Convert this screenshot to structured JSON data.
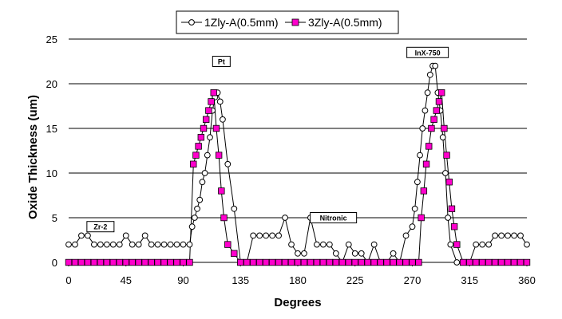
{
  "chart_data": {
    "type": "line",
    "xlabel": "Degrees",
    "ylabel": "Oxide Thickness (um)",
    "xlim": [
      0,
      360
    ],
    "ylim": [
      0,
      25
    ],
    "xticks": [
      0,
      45,
      90,
      135,
      180,
      225,
      270,
      315,
      360
    ],
    "yticks": [
      0,
      5,
      10,
      15,
      20,
      25
    ],
    "grid": "horizontal",
    "legend_position": "top",
    "series": [
      {
        "name": "1Zly-A(0.5mm)",
        "color": "#000000",
        "marker": "circle-open",
        "x": [
          0,
          5,
          10,
          15,
          20,
          25,
          30,
          35,
          40,
          45,
          50,
          55,
          60,
          65,
          70,
          75,
          80,
          85,
          90,
          95,
          97,
          99,
          101,
          103,
          105,
          107,
          109,
          111,
          113,
          115,
          117,
          119,
          121,
          125,
          130,
          135,
          140,
          145,
          150,
          155,
          160,
          165,
          170,
          175,
          180,
          185,
          190,
          195,
          200,
          205,
          210,
          215,
          220,
          225,
          230,
          235,
          240,
          245,
          250,
          255,
          260,
          265,
          270,
          272,
          274,
          276,
          278,
          280,
          282,
          284,
          286,
          288,
          290,
          292,
          294,
          296,
          298,
          300,
          305,
          310,
          315,
          320,
          325,
          330,
          335,
          340,
          345,
          350,
          355,
          360
        ],
        "y": [
          2,
          2,
          3,
          3,
          2,
          2,
          2,
          2,
          2,
          3,
          2,
          2,
          3,
          2,
          2,
          2,
          2,
          2,
          2,
          2,
          4,
          5,
          6,
          7,
          9,
          10,
          12,
          14,
          17,
          18.5,
          19,
          18,
          16,
          11,
          6,
          0,
          0,
          3,
          3,
          3,
          3,
          3,
          5,
          2,
          1,
          1,
          5,
          2,
          2,
          2,
          1,
          0,
          2,
          1,
          1,
          0,
          2,
          0,
          0,
          1,
          0,
          3,
          4,
          6,
          9,
          12,
          15,
          17,
          19,
          21,
          22,
          22,
          19,
          17,
          14,
          10,
          5,
          2,
          0,
          0,
          0,
          2,
          2,
          2,
          3,
          3,
          3,
          3,
          3,
          2
        ]
      },
      {
        "name": "3Zly-A(0.5mm)",
        "color": "#ff00cc",
        "marker": "square-filled",
        "x": [
          0,
          5,
          10,
          15,
          20,
          25,
          30,
          35,
          40,
          45,
          50,
          55,
          60,
          65,
          70,
          75,
          80,
          85,
          90,
          95,
          98,
          100,
          102,
          104,
          106,
          108,
          110,
          112,
          114,
          116,
          118,
          120,
          122,
          125,
          130,
          135,
          140,
          145,
          150,
          155,
          160,
          165,
          170,
          175,
          180,
          185,
          190,
          195,
          200,
          205,
          210,
          215,
          220,
          225,
          230,
          235,
          240,
          245,
          250,
          255,
          260,
          265,
          270,
          275,
          277,
          279,
          281,
          283,
          285,
          287,
          289,
          291,
          293,
          295,
          297,
          299,
          301,
          303,
          305,
          310,
          315,
          320,
          325,
          330,
          335,
          340,
          345,
          350,
          355,
          360
        ],
        "y": [
          0,
          0,
          0,
          0,
          0,
          0,
          0,
          0,
          0,
          0,
          0,
          0,
          0,
          0,
          0,
          0,
          0,
          0,
          0,
          0,
          11,
          12,
          13,
          14,
          15,
          16,
          17,
          18,
          19,
          15,
          12,
          8,
          5,
          2,
          1,
          0,
          0,
          0,
          0,
          0,
          0,
          0,
          0,
          0,
          0,
          0,
          0,
          0,
          0,
          0,
          0,
          0,
          0,
          0,
          0,
          0,
          0,
          0,
          0,
          0,
          0,
          0,
          0,
          0,
          5,
          8,
          11,
          13,
          15,
          16,
          17,
          18,
          19,
          15,
          12,
          9,
          6,
          4,
          2,
          0,
          0,
          0,
          0,
          0,
          0,
          0,
          0,
          0,
          0,
          0
        ]
      }
    ],
    "annotations": [
      {
        "text": "Zr-2",
        "x": 25,
        "y": 4
      },
      {
        "text": "Pt",
        "x": 120,
        "y": 22.5
      },
      {
        "text": "Nitronic",
        "x": 208,
        "y": 5
      },
      {
        "text": "InX-750",
        "x": 282,
        "y": 23.5
      }
    ]
  }
}
